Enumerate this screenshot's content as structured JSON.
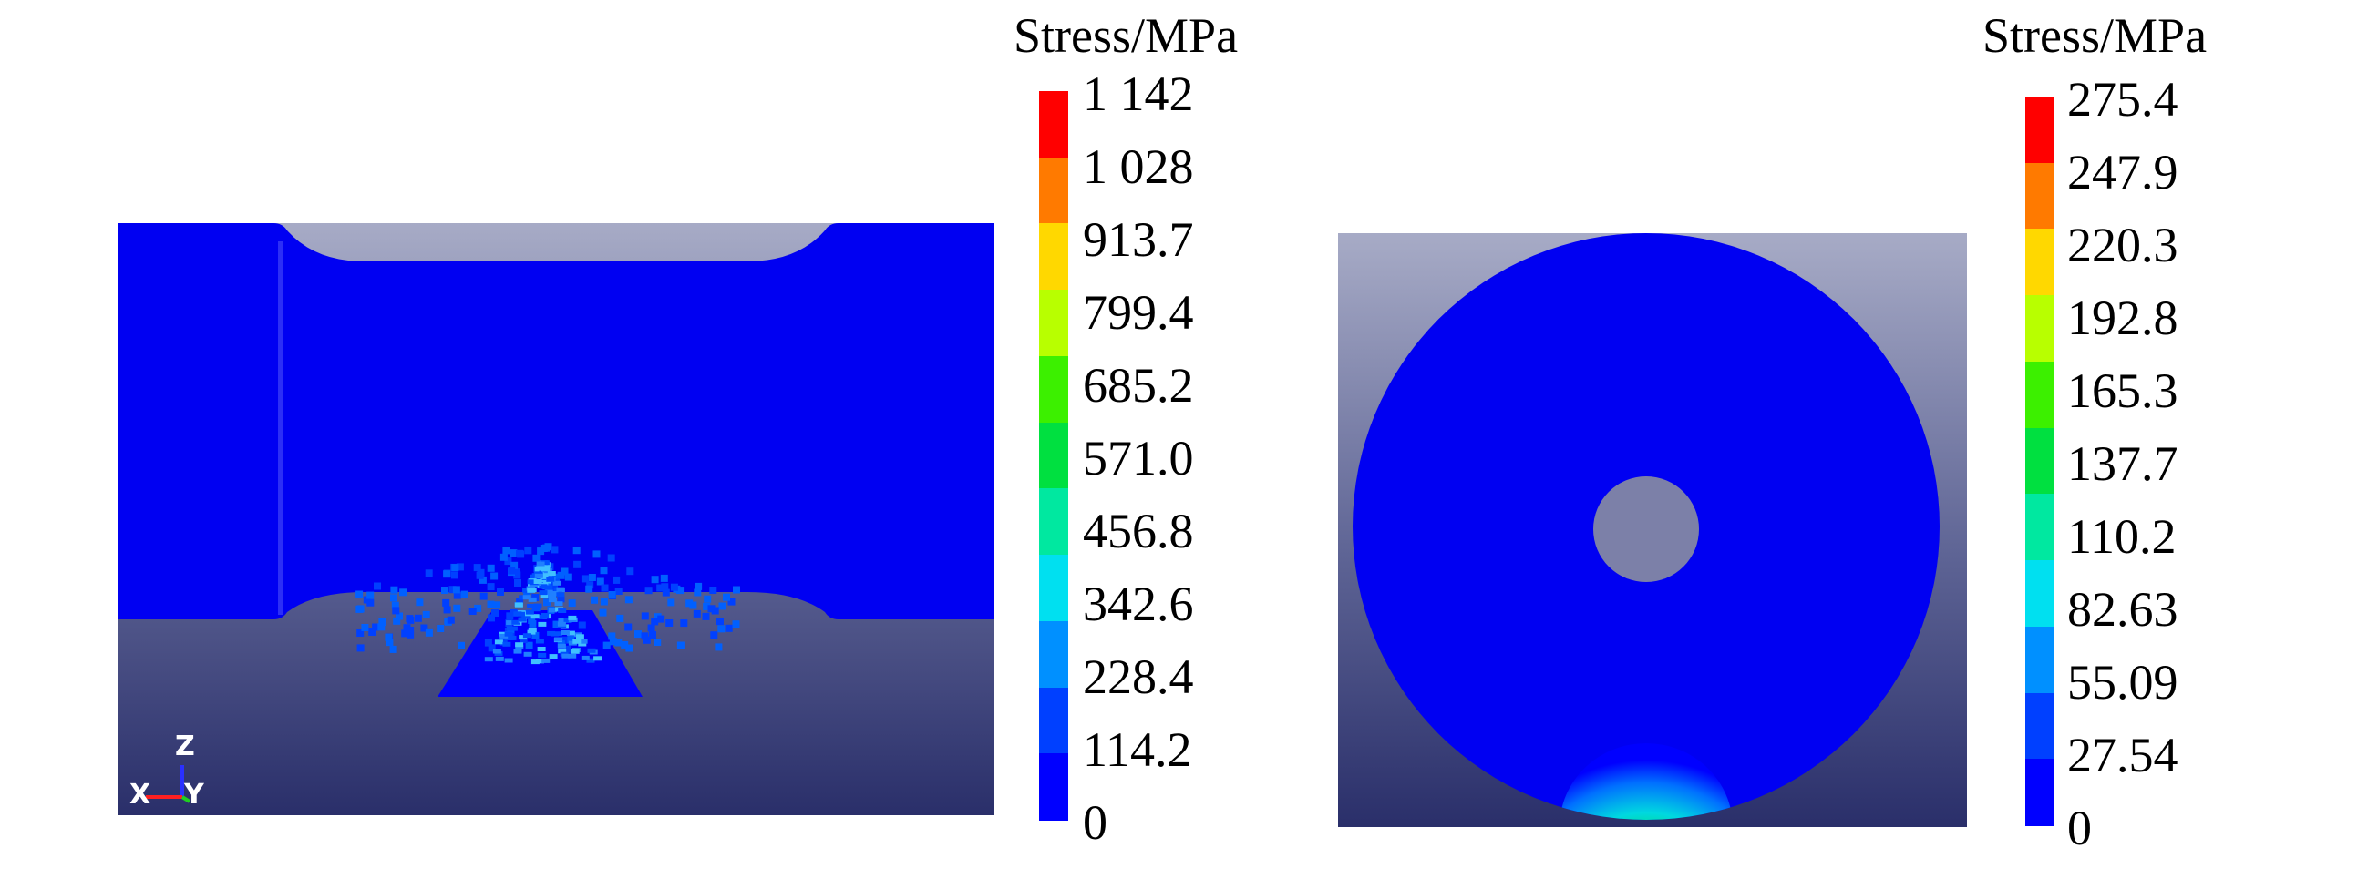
{
  "left_panel": {
    "legend": {
      "title": "Stress/MPa",
      "ticks": [
        "1 142",
        "1 028",
        "913.7",
        "799.4",
        "685.2",
        "571.0",
        "456.8",
        "342.6",
        "228.4",
        "114.2",
        "0"
      ]
    },
    "triad": {
      "z": "Z",
      "x": "X",
      "y": "Y"
    }
  },
  "right_panel": {
    "legend": {
      "title": "Stress/MPa",
      "ticks": [
        "275.4",
        "247.9",
        "220.3",
        "192.8",
        "165.3",
        "137.7",
        "110.2",
        "82.63",
        "55.09",
        "27.54",
        "0"
      ]
    }
  },
  "colormap": [
    "#ff0000",
    "#ff7a00",
    "#ffd800",
    "#b8ff00",
    "#3cf000",
    "#00e040",
    "#00e8a0",
    "#00e0f0",
    "#0090ff",
    "#0040ff",
    "#0000ff"
  ]
}
